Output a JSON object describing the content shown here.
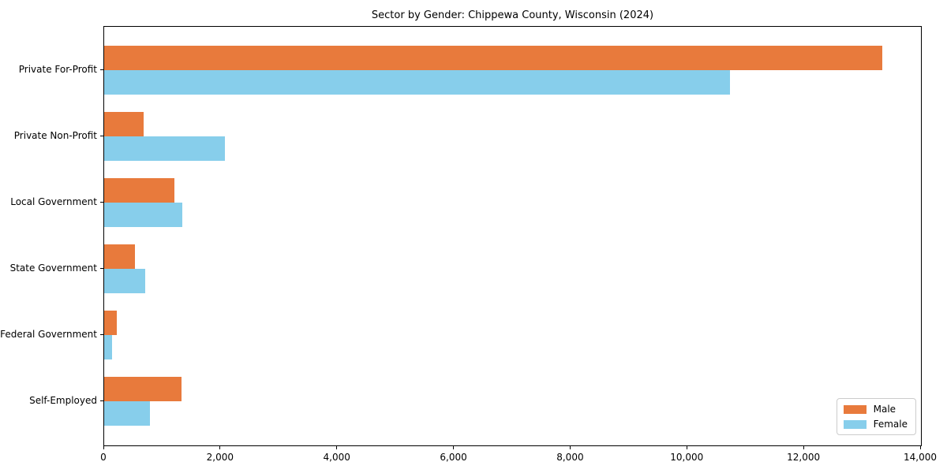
{
  "chart_data": {
    "type": "bar",
    "orientation": "horizontal",
    "title": "Sector by Gender: Chippewa County, Wisconsin (2024)",
    "xlabel": "",
    "ylabel": "",
    "categories": [
      "Private For-Profit",
      "Private Non-Profit",
      "Local Government",
      "State Government",
      "Federal Government",
      "Self-Employed"
    ],
    "series": [
      {
        "name": "Male",
        "color": "#e87a3c",
        "values": [
          13340,
          680,
          1200,
          530,
          220,
          1330
        ]
      },
      {
        "name": "Female",
        "color": "#87ceeb",
        "values": [
          10730,
          2070,
          1340,
          700,
          140,
          780
        ]
      }
    ],
    "xlim": [
      0,
      14000
    ],
    "xticks": [
      0,
      2000,
      4000,
      6000,
      8000,
      10000,
      12000,
      14000
    ],
    "xtick_labels": [
      "0",
      "2,000",
      "4,000",
      "6,000",
      "8,000",
      "10,000",
      "12,000",
      "14,000"
    ],
    "grid": false,
    "legend_position": "lower right"
  }
}
